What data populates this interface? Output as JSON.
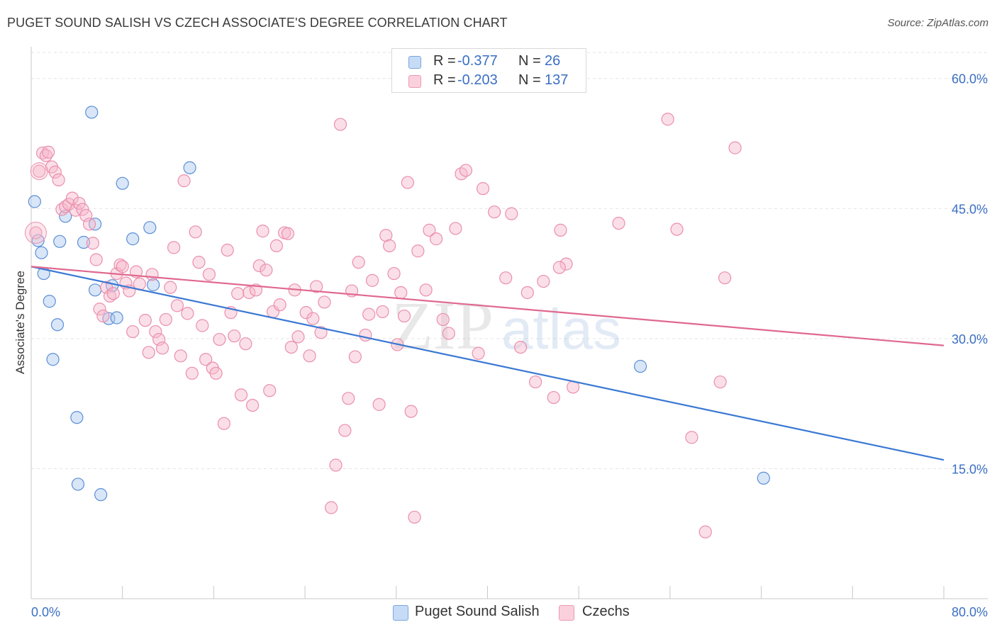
{
  "header": {
    "title": "PUGET SOUND SALISH VS CZECH ASSOCIATE'S DEGREE CORRELATION CHART",
    "source": "Source: ZipAtlas.com"
  },
  "stats": {
    "rows": [
      {
        "r_label": "R =",
        "r_value": "-0.377",
        "n_label": "N =",
        "n_value": "26",
        "color": "#aac8f0"
      },
      {
        "r_label": "R =",
        "r_value": "-0.203",
        "n_label": "N =",
        "n_value": "137",
        "color": "#f6b9cb"
      }
    ]
  },
  "legend": {
    "items": [
      {
        "label": "Puget Sound Salish",
        "color": "#aac8f0"
      },
      {
        "label": "Czechs",
        "color": "#f6b9cb"
      }
    ]
  },
  "watermark": {
    "zip": "ZIP",
    "atlas": "atlas"
  },
  "chart_data": {
    "type": "scatter",
    "ylabel": "Associate's Degree",
    "xlim": [
      0,
      80
    ],
    "ylim": [
      0,
      63
    ],
    "x_tick_labels": [
      {
        "value": 0,
        "label": "0.0%"
      },
      {
        "value": 80,
        "label": "80.0%"
      }
    ],
    "y_tick_labels": [
      {
        "value": 15,
        "label": "15.0%"
      },
      {
        "value": 30,
        "label": "30.0%"
      },
      {
        "value": 45,
        "label": "45.0%"
      },
      {
        "value": 60,
        "label": "60.0%"
      }
    ],
    "grid": true,
    "series": [
      {
        "name": "Puget Sound Salish",
        "color": "#aac8f0",
        "stroke": "#5b8fd6",
        "trend_color": "#3a78d4",
        "trend": {
          "x0": 0,
          "y0": 38.3,
          "x1": 80,
          "y1": 16.0
        },
        "points": [
          [
            0.3,
            45.8
          ],
          [
            0.6,
            41.3
          ],
          [
            0.9,
            39.9
          ],
          [
            1.1,
            37.5
          ],
          [
            1.6,
            34.3
          ],
          [
            3.0,
            44.1
          ],
          [
            2.5,
            41.2
          ],
          [
            2.3,
            31.6
          ],
          [
            1.9,
            27.6
          ],
          [
            4.6,
            41.1
          ],
          [
            5.3,
            56.1
          ],
          [
            5.6,
            35.6
          ],
          [
            6.8,
            32.3
          ],
          [
            7.1,
            36.1
          ],
          [
            8.0,
            47.9
          ],
          [
            8.9,
            41.5
          ],
          [
            10.4,
            42.8
          ],
          [
            13.9,
            49.7
          ],
          [
            5.6,
            43.2
          ],
          [
            7.5,
            32.4
          ],
          [
            4.0,
            20.9
          ],
          [
            4.1,
            13.2
          ],
          [
            6.1,
            12.0
          ],
          [
            10.7,
            36.2
          ],
          [
            53.4,
            26.8
          ],
          [
            64.2,
            13.9
          ]
        ]
      },
      {
        "name": "Czechs",
        "color": "#f6b9cb",
        "stroke": "#ea8fac",
        "trend_color": "#e0688f",
        "trend": {
          "x0": 0,
          "y0": 38.3,
          "x1": 80,
          "y1": 29.2
        },
        "points": [
          [
            0.4,
            42.2
          ],
          [
            0.7,
            49.3
          ],
          [
            1.0,
            51.4
          ],
          [
            1.3,
            51.1
          ],
          [
            1.5,
            51.5
          ],
          [
            1.8,
            49.8
          ],
          [
            2.1,
            49.2
          ],
          [
            2.4,
            48.3
          ],
          [
            2.7,
            44.9
          ],
          [
            3.0,
            45.2
          ],
          [
            3.3,
            45.5
          ],
          [
            3.6,
            46.2
          ],
          [
            3.9,
            44.8
          ],
          [
            4.2,
            45.6
          ],
          [
            4.5,
            44.9
          ],
          [
            4.8,
            44.2
          ],
          [
            5.1,
            43.2
          ],
          [
            5.4,
            41.0
          ],
          [
            5.7,
            39.1
          ],
          [
            6.0,
            33.4
          ],
          [
            6.3,
            32.6
          ],
          [
            6.6,
            35.9
          ],
          [
            6.9,
            34.9
          ],
          [
            7.2,
            35.2
          ],
          [
            7.5,
            37.5
          ],
          [
            7.8,
            38.5
          ],
          [
            8.0,
            38.3
          ],
          [
            8.3,
            36.4
          ],
          [
            8.6,
            35.5
          ],
          [
            8.9,
            30.8
          ],
          [
            9.2,
            37.7
          ],
          [
            9.5,
            36.3
          ],
          [
            10.0,
            32.1
          ],
          [
            10.3,
            28.4
          ],
          [
            10.6,
            37.4
          ],
          [
            10.9,
            30.8
          ],
          [
            11.2,
            29.9
          ],
          [
            11.5,
            28.9
          ],
          [
            11.8,
            32.2
          ],
          [
            12.2,
            35.9
          ],
          [
            12.5,
            40.5
          ],
          [
            12.8,
            33.8
          ],
          [
            13.1,
            28.0
          ],
          [
            13.4,
            48.2
          ],
          [
            13.7,
            32.9
          ],
          [
            14.1,
            26.0
          ],
          [
            14.4,
            42.3
          ],
          [
            14.7,
            38.8
          ],
          [
            15.0,
            31.5
          ],
          [
            15.3,
            27.6
          ],
          [
            15.6,
            37.4
          ],
          [
            15.9,
            26.6
          ],
          [
            16.2,
            26.0
          ],
          [
            16.5,
            29.9
          ],
          [
            16.9,
            20.2
          ],
          [
            17.2,
            40.2
          ],
          [
            17.5,
            33.0
          ],
          [
            17.8,
            30.3
          ],
          [
            18.1,
            35.2
          ],
          [
            18.4,
            23.5
          ],
          [
            18.8,
            29.4
          ],
          [
            19.1,
            35.3
          ],
          [
            19.4,
            22.3
          ],
          [
            19.7,
            35.6
          ],
          [
            20.0,
            38.4
          ],
          [
            20.3,
            42.4
          ],
          [
            20.6,
            37.9
          ],
          [
            20.9,
            24.0
          ],
          [
            21.2,
            33.1
          ],
          [
            21.5,
            40.7
          ],
          [
            21.8,
            33.9
          ],
          [
            22.2,
            42.2
          ],
          [
            22.5,
            42.1
          ],
          [
            22.8,
            29.0
          ],
          [
            23.1,
            35.6
          ],
          [
            23.4,
            30.2
          ],
          [
            24.1,
            33.0
          ],
          [
            24.4,
            28.0
          ],
          [
            24.7,
            32.3
          ],
          [
            25.0,
            36.0
          ],
          [
            25.4,
            30.7
          ],
          [
            25.7,
            34.2
          ],
          [
            26.7,
            15.4
          ],
          [
            26.3,
            10.5
          ],
          [
            27.1,
            54.7
          ],
          [
            27.5,
            19.4
          ],
          [
            27.8,
            23.1
          ],
          [
            28.1,
            35.5
          ],
          [
            28.4,
            27.9
          ],
          [
            28.7,
            38.8
          ],
          [
            29.3,
            30.4
          ],
          [
            29.6,
            32.8
          ],
          [
            29.9,
            36.7
          ],
          [
            30.5,
            22.4
          ],
          [
            30.8,
            33.1
          ],
          [
            31.1,
            41.9
          ],
          [
            31.4,
            40.7
          ],
          [
            31.8,
            37.5
          ],
          [
            32.1,
            29.3
          ],
          [
            32.4,
            35.3
          ],
          [
            32.7,
            32.6
          ],
          [
            33.0,
            48.0
          ],
          [
            33.3,
            21.6
          ],
          [
            33.6,
            9.4
          ],
          [
            33.9,
            40.1
          ],
          [
            34.6,
            35.6
          ],
          [
            34.9,
            42.5
          ],
          [
            35.5,
            41.5
          ],
          [
            36.1,
            32.2
          ],
          [
            36.6,
            30.6
          ],
          [
            37.2,
            42.7
          ],
          [
            37.7,
            49.0
          ],
          [
            38.1,
            49.4
          ],
          [
            39.2,
            28.3
          ],
          [
            39.6,
            47.3
          ],
          [
            40.6,
            44.6
          ],
          [
            41.6,
            37.0
          ],
          [
            42.1,
            44.4
          ],
          [
            42.9,
            29.0
          ],
          [
            43.5,
            35.3
          ],
          [
            44.2,
            25.0
          ],
          [
            44.9,
            36.6
          ],
          [
            45.8,
            23.2
          ],
          [
            46.4,
            42.5
          ],
          [
            46.9,
            38.6
          ],
          [
            47.5,
            24.4
          ],
          [
            51.5,
            43.3
          ],
          [
            55.8,
            55.3
          ],
          [
            56.6,
            42.6
          ],
          [
            57.9,
            18.6
          ],
          [
            59.1,
            7.7
          ],
          [
            60.4,
            25.0
          ],
          [
            60.8,
            37.0
          ],
          [
            61.7,
            52.0
          ],
          [
            46.3,
            38.2
          ]
        ]
      }
    ]
  }
}
